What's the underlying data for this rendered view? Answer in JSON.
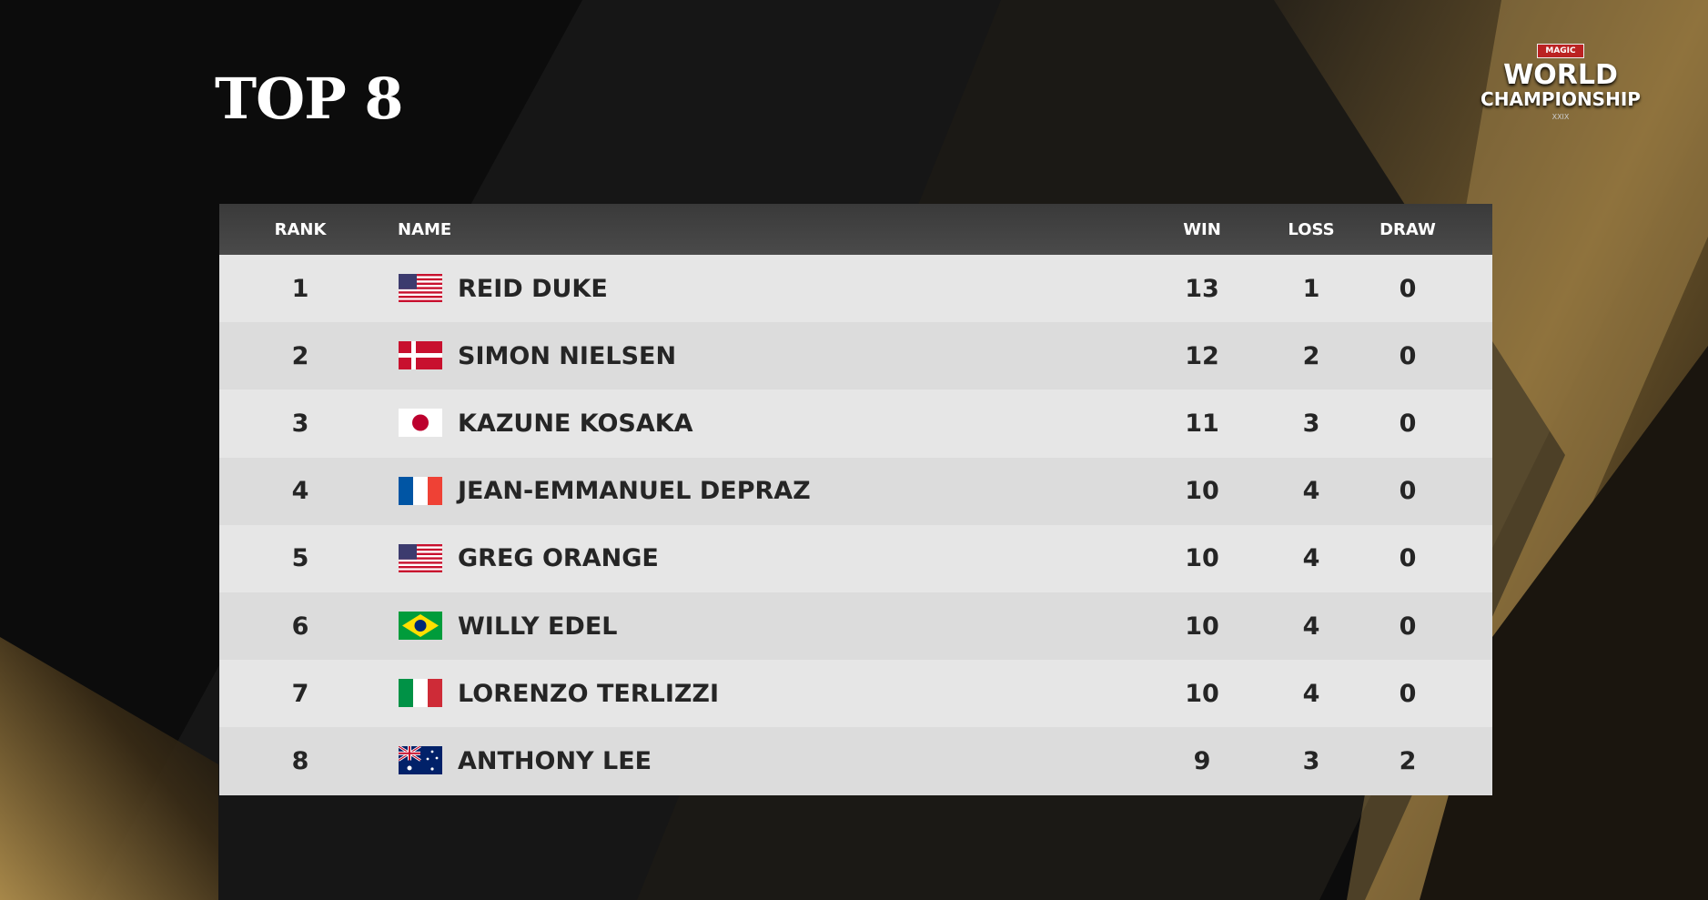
{
  "header": {
    "title": "TOP 8"
  },
  "logo": {
    "brand": "MAGIC",
    "line1": "WORLD",
    "line2": "CHAMPIONSHIP",
    "edition": "XXIX"
  },
  "table": {
    "columns": [
      "RANK",
      "NAME",
      "WIN",
      "LOSS",
      "DRAW"
    ],
    "rows": [
      [
        1,
        "REID DUKE",
        13,
        1,
        0
      ],
      [
        2,
        "SIMON NIELSEN",
        12,
        2,
        0
      ],
      [
        3,
        "KAZUNE KOSAKA",
        11,
        3,
        0
      ],
      [
        4,
        "JEAN-EMMANUEL DEPRAZ",
        10,
        4,
        0
      ],
      [
        5,
        "GREG ORANGE",
        10,
        4,
        0
      ],
      [
        6,
        "WILLY EDEL",
        10,
        4,
        0
      ],
      [
        7,
        "LORENZO TERLIZZI",
        10,
        4,
        0
      ],
      [
        8,
        "ANTHONY LEE",
        9,
        3,
        2
      ]
    ]
  }
}
